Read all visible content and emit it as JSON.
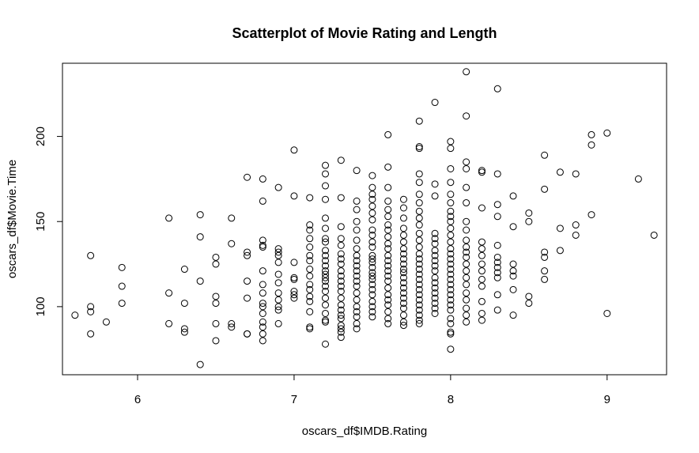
{
  "chart_data": {
    "type": "scatter",
    "title": "Scatterplot of Movie Rating and Length",
    "xlabel": "oscars_df$IMDB.Rating",
    "ylabel": "oscars_df$Movie.Time",
    "xlim": [
      5.52,
      9.38
    ],
    "ylim": [
      60,
      243
    ],
    "xticks": [
      6,
      7,
      8,
      9
    ],
    "yticks": [
      100,
      150,
      200
    ],
    "grid": false,
    "colors": {
      "point_stroke": "#000000",
      "axis": "#000000",
      "background": "#ffffff"
    },
    "points": [
      [
        5.6,
        95
      ],
      [
        5.7,
        130
      ],
      [
        5.7,
        100
      ],
      [
        5.7,
        97
      ],
      [
        5.7,
        84
      ],
      [
        5.8,
        91
      ],
      [
        5.9,
        123
      ],
      [
        5.9,
        112
      ],
      [
        5.9,
        102
      ],
      [
        6.2,
        152
      ],
      [
        6.2,
        108
      ],
      [
        6.2,
        90
      ],
      [
        6.3,
        122
      ],
      [
        6.3,
        102
      ],
      [
        6.3,
        87
      ],
      [
        6.3,
        85
      ],
      [
        6.4,
        154
      ],
      [
        6.4,
        141
      ],
      [
        6.4,
        115
      ],
      [
        6.4,
        66
      ],
      [
        6.5,
        129
      ],
      [
        6.5,
        125
      ],
      [
        6.5,
        106
      ],
      [
        6.5,
        102
      ],
      [
        6.5,
        90
      ],
      [
        6.5,
        80
      ],
      [
        6.6,
        152
      ],
      [
        6.6,
        137
      ],
      [
        6.6,
        90
      ],
      [
        6.6,
        88
      ],
      [
        6.7,
        176
      ],
      [
        6.7,
        132
      ],
      [
        6.7,
        130
      ],
      [
        6.7,
        115
      ],
      [
        6.7,
        105
      ],
      [
        6.7,
        84
      ],
      [
        6.7,
        84
      ],
      [
        6.8,
        175
      ],
      [
        6.8,
        162
      ],
      [
        6.8,
        139
      ],
      [
        6.8,
        136
      ],
      [
        6.8,
        135
      ],
      [
        6.8,
        121
      ],
      [
        6.8,
        113
      ],
      [
        6.8,
        108
      ],
      [
        6.8,
        102
      ],
      [
        6.8,
        100
      ],
      [
        6.8,
        96
      ],
      [
        6.8,
        91
      ],
      [
        6.8,
        88
      ],
      [
        6.8,
        84
      ],
      [
        6.8,
        80
      ],
      [
        6.9,
        170
      ],
      [
        6.9,
        134
      ],
      [
        6.9,
        132
      ],
      [
        6.9,
        130
      ],
      [
        6.9,
        126
      ],
      [
        6.9,
        119
      ],
      [
        6.9,
        114
      ],
      [
        6.9,
        108
      ],
      [
        6.9,
        104
      ],
      [
        6.9,
        100
      ],
      [
        6.9,
        98
      ],
      [
        6.9,
        90
      ],
      [
        7.0,
        192
      ],
      [
        7.0,
        165
      ],
      [
        7.0,
        126
      ],
      [
        7.0,
        117
      ],
      [
        7.0,
        116
      ],
      [
        7.0,
        109
      ],
      [
        7.0,
        107
      ],
      [
        7.0,
        105
      ],
      [
        7.1,
        164
      ],
      [
        7.1,
        148
      ],
      [
        7.1,
        145
      ],
      [
        7.1,
        140
      ],
      [
        7.1,
        135
      ],
      [
        7.1,
        130
      ],
      [
        7.1,
        127
      ],
      [
        7.1,
        122
      ],
      [
        7.1,
        118
      ],
      [
        7.1,
        113
      ],
      [
        7.1,
        110
      ],
      [
        7.1,
        106
      ],
      [
        7.1,
        103
      ],
      [
        7.1,
        97
      ],
      [
        7.1,
        88
      ],
      [
        7.1,
        87
      ],
      [
        7.2,
        183
      ],
      [
        7.2,
        178
      ],
      [
        7.2,
        171
      ],
      [
        7.2,
        163
      ],
      [
        7.2,
        152
      ],
      [
        7.2,
        146
      ],
      [
        7.2,
        140
      ],
      [
        7.2,
        138
      ],
      [
        7.2,
        133
      ],
      [
        7.2,
        130
      ],
      [
        7.2,
        127
      ],
      [
        7.2,
        124
      ],
      [
        7.2,
        121
      ],
      [
        7.2,
        119
      ],
      [
        7.2,
        117
      ],
      [
        7.2,
        115
      ],
      [
        7.2,
        112
      ],
      [
        7.2,
        109
      ],
      [
        7.2,
        105
      ],
      [
        7.2,
        101
      ],
      [
        7.2,
        96
      ],
      [
        7.2,
        92
      ],
      [
        7.2,
        91
      ],
      [
        7.2,
        78
      ],
      [
        7.3,
        186
      ],
      [
        7.3,
        164
      ],
      [
        7.3,
        147
      ],
      [
        7.3,
        140
      ],
      [
        7.3,
        136
      ],
      [
        7.3,
        131
      ],
      [
        7.3,
        128
      ],
      [
        7.3,
        125
      ],
      [
        7.3,
        121
      ],
      [
        7.3,
        118
      ],
      [
        7.3,
        115
      ],
      [
        7.3,
        112
      ],
      [
        7.3,
        109
      ],
      [
        7.3,
        105
      ],
      [
        7.3,
        101
      ],
      [
        7.3,
        98
      ],
      [
        7.3,
        95
      ],
      [
        7.3,
        93
      ],
      [
        7.3,
        89
      ],
      [
        7.3,
        87
      ],
      [
        7.3,
        85
      ],
      [
        7.3,
        82
      ],
      [
        7.4,
        180
      ],
      [
        7.4,
        162
      ],
      [
        7.4,
        157
      ],
      [
        7.4,
        150
      ],
      [
        7.4,
        145
      ],
      [
        7.4,
        139
      ],
      [
        7.4,
        134
      ],
      [
        7.4,
        130
      ],
      [
        7.4,
        127
      ],
      [
        7.4,
        124
      ],
      [
        7.4,
        121
      ],
      [
        7.4,
        118
      ],
      [
        7.4,
        115
      ],
      [
        7.4,
        112
      ],
      [
        7.4,
        108
      ],
      [
        7.4,
        104
      ],
      [
        7.4,
        100
      ],
      [
        7.4,
        97
      ],
      [
        7.4,
        94
      ],
      [
        7.4,
        90
      ],
      [
        7.4,
        87
      ],
      [
        7.5,
        177
      ],
      [
        7.5,
        170
      ],
      [
        7.5,
        166
      ],
      [
        7.5,
        163
      ],
      [
        7.5,
        159
      ],
      [
        7.5,
        155
      ],
      [
        7.5,
        151
      ],
      [
        7.5,
        145
      ],
      [
        7.5,
        142
      ],
      [
        7.5,
        138
      ],
      [
        7.5,
        135
      ],
      [
        7.5,
        130
      ],
      [
        7.5,
        128
      ],
      [
        7.5,
        126
      ],
      [
        7.5,
        123
      ],
      [
        7.5,
        120
      ],
      [
        7.5,
        118
      ],
      [
        7.5,
        116
      ],
      [
        7.5,
        113
      ],
      [
        7.5,
        110
      ],
      [
        7.5,
        107
      ],
      [
        7.5,
        103
      ],
      [
        7.5,
        100
      ],
      [
        7.5,
        97
      ],
      [
        7.5,
        94
      ],
      [
        7.6,
        201
      ],
      [
        7.6,
        182
      ],
      [
        7.6,
        170
      ],
      [
        7.6,
        162
      ],
      [
        7.6,
        157
      ],
      [
        7.6,
        153
      ],
      [
        7.6,
        148
      ],
      [
        7.6,
        145
      ],
      [
        7.6,
        141
      ],
      [
        7.6,
        137
      ],
      [
        7.6,
        134
      ],
      [
        7.6,
        130
      ],
      [
        7.6,
        127
      ],
      [
        7.6,
        124
      ],
      [
        7.6,
        121
      ],
      [
        7.6,
        118
      ],
      [
        7.6,
        115
      ],
      [
        7.6,
        111
      ],
      [
        7.6,
        107
      ],
      [
        7.6,
        104
      ],
      [
        7.6,
        101
      ],
      [
        7.6,
        97
      ],
      [
        7.6,
        93
      ],
      [
        7.6,
        90
      ],
      [
        7.7,
        163
      ],
      [
        7.7,
        158
      ],
      [
        7.7,
        152
      ],
      [
        7.7,
        146
      ],
      [
        7.7,
        142
      ],
      [
        7.7,
        138
      ],
      [
        7.7,
        134
      ],
      [
        7.7,
        131
      ],
      [
        7.7,
        128
      ],
      [
        7.7,
        125
      ],
      [
        7.7,
        122
      ],
      [
        7.7,
        120
      ],
      [
        7.7,
        117
      ],
      [
        7.7,
        114
      ],
      [
        7.7,
        111
      ],
      [
        7.7,
        108
      ],
      [
        7.7,
        105
      ],
      [
        7.7,
        102
      ],
      [
        7.7,
        99
      ],
      [
        7.7,
        95
      ],
      [
        7.7,
        91
      ],
      [
        7.7,
        89
      ],
      [
        7.8,
        209
      ],
      [
        7.8,
        194
      ],
      [
        7.8,
        193
      ],
      [
        7.8,
        178
      ],
      [
        7.8,
        173
      ],
      [
        7.8,
        166
      ],
      [
        7.8,
        161
      ],
      [
        7.8,
        156
      ],
      [
        7.8,
        152
      ],
      [
        7.8,
        148
      ],
      [
        7.8,
        143
      ],
      [
        7.8,
        139
      ],
      [
        7.8,
        135
      ],
      [
        7.8,
        131
      ],
      [
        7.8,
        128
      ],
      [
        7.8,
        125
      ],
      [
        7.8,
        122
      ],
      [
        7.8,
        119
      ],
      [
        7.8,
        116
      ],
      [
        7.8,
        113
      ],
      [
        7.8,
        110
      ],
      [
        7.8,
        107
      ],
      [
        7.8,
        104
      ],
      [
        7.8,
        101
      ],
      [
        7.8,
        98
      ],
      [
        7.8,
        95
      ],
      [
        7.8,
        92
      ],
      [
        7.8,
        90
      ],
      [
        7.9,
        220
      ],
      [
        7.9,
        172
      ],
      [
        7.9,
        165
      ],
      [
        7.9,
        143
      ],
      [
        7.9,
        140
      ],
      [
        7.9,
        137
      ],
      [
        7.9,
        133
      ],
      [
        7.9,
        130
      ],
      [
        7.9,
        127
      ],
      [
        7.9,
        124
      ],
      [
        7.9,
        121
      ],
      [
        7.9,
        117
      ],
      [
        7.9,
        114
      ],
      [
        7.9,
        111
      ],
      [
        7.9,
        108
      ],
      [
        7.9,
        105
      ],
      [
        7.9,
        102
      ],
      [
        7.9,
        99
      ],
      [
        7.9,
        96
      ],
      [
        8.0,
        197
      ],
      [
        8.0,
        193
      ],
      [
        8.0,
        181
      ],
      [
        8.0,
        173
      ],
      [
        8.0,
        166
      ],
      [
        8.0,
        161
      ],
      [
        8.0,
        156
      ],
      [
        8.0,
        153
      ],
      [
        8.0,
        150
      ],
      [
        8.0,
        146
      ],
      [
        8.0,
        142
      ],
      [
        8.0,
        138
      ],
      [
        8.0,
        134
      ],
      [
        8.0,
        131
      ],
      [
        8.0,
        128
      ],
      [
        8.0,
        125
      ],
      [
        8.0,
        122
      ],
      [
        8.0,
        119
      ],
      [
        8.0,
        116
      ],
      [
        8.0,
        113
      ],
      [
        8.0,
        110
      ],
      [
        8.0,
        107
      ],
      [
        8.0,
        104
      ],
      [
        8.0,
        101
      ],
      [
        8.0,
        98
      ],
      [
        8.0,
        93
      ],
      [
        8.0,
        90
      ],
      [
        8.0,
        85
      ],
      [
        8.0,
        84
      ],
      [
        8.0,
        75
      ],
      [
        8.1,
        238
      ],
      [
        8.1,
        212
      ],
      [
        8.1,
        185
      ],
      [
        8.1,
        181
      ],
      [
        8.1,
        170
      ],
      [
        8.1,
        161
      ],
      [
        8.1,
        150
      ],
      [
        8.1,
        145
      ],
      [
        8.1,
        139
      ],
      [
        8.1,
        135
      ],
      [
        8.1,
        132
      ],
      [
        8.1,
        129
      ],
      [
        8.1,
        125
      ],
      [
        8.1,
        121
      ],
      [
        8.1,
        117
      ],
      [
        8.1,
        113
      ],
      [
        8.1,
        108
      ],
      [
        8.1,
        104
      ],
      [
        8.1,
        99
      ],
      [
        8.1,
        95
      ],
      [
        8.1,
        91
      ],
      [
        8.2,
        180
      ],
      [
        8.2,
        179
      ],
      [
        8.2,
        158
      ],
      [
        8.2,
        138
      ],
      [
        8.2,
        134
      ],
      [
        8.2,
        130
      ],
      [
        8.2,
        125
      ],
      [
        8.2,
        121
      ],
      [
        8.2,
        116
      ],
      [
        8.2,
        112
      ],
      [
        8.2,
        103
      ],
      [
        8.2,
        96
      ],
      [
        8.2,
        92
      ],
      [
        8.3,
        228
      ],
      [
        8.3,
        178
      ],
      [
        8.3,
        160
      ],
      [
        8.3,
        153
      ],
      [
        8.3,
        136
      ],
      [
        8.3,
        129
      ],
      [
        8.3,
        126
      ],
      [
        8.3,
        123
      ],
      [
        8.3,
        120
      ],
      [
        8.3,
        117
      ],
      [
        8.3,
        107
      ],
      [
        8.3,
        98
      ],
      [
        8.4,
        165
      ],
      [
        8.4,
        147
      ],
      [
        8.4,
        125
      ],
      [
        8.4,
        121
      ],
      [
        8.4,
        118
      ],
      [
        8.4,
        110
      ],
      [
        8.4,
        95
      ],
      [
        8.5,
        155
      ],
      [
        8.5,
        150
      ],
      [
        8.5,
        106
      ],
      [
        8.5,
        102
      ],
      [
        8.6,
        189
      ],
      [
        8.6,
        169
      ],
      [
        8.6,
        132
      ],
      [
        8.6,
        129
      ],
      [
        8.6,
        121
      ],
      [
        8.6,
        116
      ],
      [
        8.7,
        179
      ],
      [
        8.7,
        146
      ],
      [
        8.7,
        133
      ],
      [
        8.8,
        178
      ],
      [
        8.8,
        148
      ],
      [
        8.8,
        142
      ],
      [
        8.9,
        201
      ],
      [
        8.9,
        195
      ],
      [
        8.9,
        154
      ],
      [
        9.0,
        202
      ],
      [
        9.0,
        96
      ],
      [
        9.2,
        175
      ],
      [
        9.3,
        142
      ]
    ]
  }
}
